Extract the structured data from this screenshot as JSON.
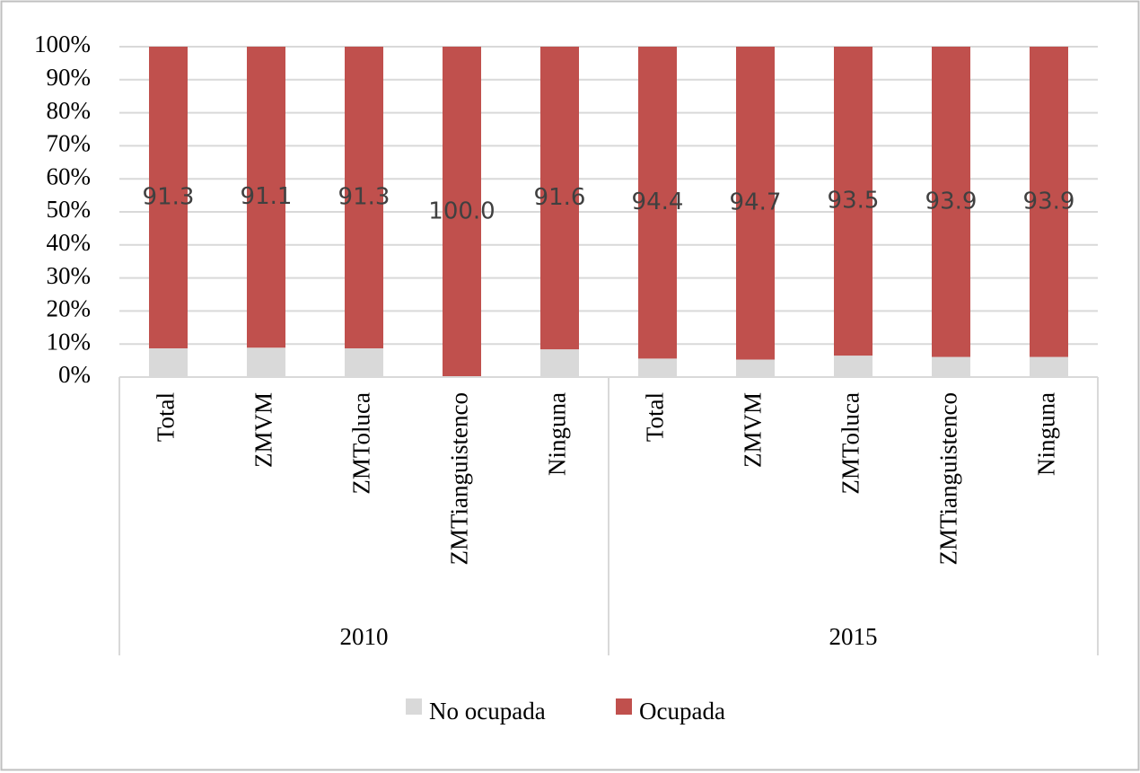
{
  "chart_data": {
    "type": "stacked-bar",
    "groups": [
      {
        "name": "2010",
        "categories": [
          "Total",
          "ZMVM",
          "ZMToluca",
          "ZMTianguistenco",
          "Ninguna"
        ]
      },
      {
        "name": "2015",
        "categories": [
          "Total",
          "ZMVM",
          "ZMToluca",
          "ZMTianguistenco",
          "Ninguna"
        ]
      }
    ],
    "series": [
      {
        "name": "No ocupada",
        "color": "#d9d9d9",
        "values": [
          8.7,
          8.9,
          8.7,
          0,
          8.4,
          5.6,
          5.3,
          6.5,
          6.1,
          6.1
        ]
      },
      {
        "name": "Ocupada",
        "color": "#c0504d",
        "values": [
          91.3,
          91.1,
          91.3,
          100,
          91.6,
          94.4,
          94.7,
          93.5,
          93.9,
          93.9
        ],
        "value_labels": [
          "91.3",
          "91.1",
          "91.3",
          "100.0",
          "91.6",
          "94.4",
          "94.7",
          "93.5",
          "93.9",
          "93.9"
        ]
      }
    ],
    "ylim": [
      0,
      100
    ],
    "yticks": [
      {
        "value": 0,
        "label": "0%"
      },
      {
        "value": 10,
        "label": "10%"
      },
      {
        "value": 20,
        "label": "20%"
      },
      {
        "value": 30,
        "label": "30%"
      },
      {
        "value": 40,
        "label": "40%"
      },
      {
        "value": 50,
        "label": "50%"
      },
      {
        "value": 60,
        "label": "60%"
      },
      {
        "value": 70,
        "label": "70%"
      },
      {
        "value": 80,
        "label": "80%"
      },
      {
        "value": 90,
        "label": "90%"
      },
      {
        "value": 100,
        "label": "100%"
      }
    ],
    "grid": true,
    "legend": "bottom"
  }
}
